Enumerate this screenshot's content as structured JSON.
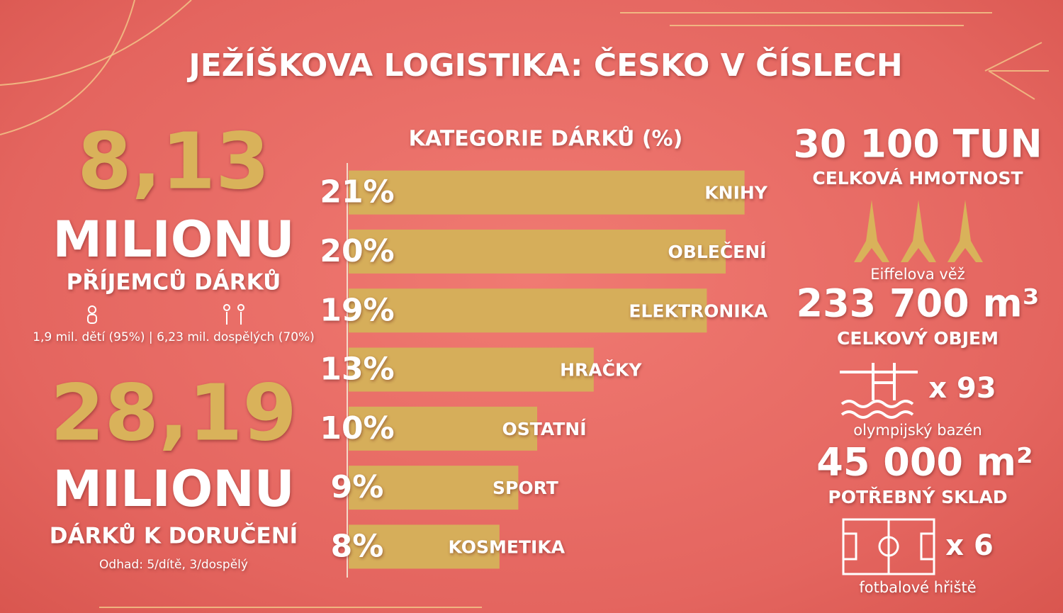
{
  "title": "JEŽÍŠKOVA LOGISTIKA: ČESKO V ČÍSLECH",
  "left": {
    "recipients": {
      "number": "8,13",
      "unit": "MILIONU",
      "label": "PŘÍJEMCŮ DÁRKŮ",
      "note": "1,9 mil. dětí (95%) | 6,23 mil. dospělých (70%)"
    },
    "gifts": {
      "number": "28,19",
      "unit": "MILIONU",
      "label": "DÁRKŮ K DORUČENÍ",
      "note": "Odhad: 5/dítě, 3/dospělý"
    }
  },
  "right": {
    "weight": {
      "value": "30 100 TUN",
      "label": "CELKOVÁ HMOTNOST",
      "icon_label": "Eiffelova věž"
    },
    "volume": {
      "value": "233 700 m³",
      "label": "CELKOVÝ OBJEM",
      "multiplier": "x 93",
      "icon_label": "olympijský bazén"
    },
    "storage": {
      "value": "45 000 m²",
      "label": "POTŘEBNÝ SKLAD",
      "multiplier": "x 6",
      "icon_label": "fotbalové hřiště"
    }
  },
  "chart_data": {
    "type": "bar",
    "orientation": "horizontal",
    "title": "KATEGORIE DÁRKŮ (%)",
    "categories": [
      "KNIHY",
      "OBLEČENÍ",
      "ELEKTRONIKA",
      "HRAČKY",
      "OSTATNÍ",
      "SPORT",
      "KOSMETIKA"
    ],
    "values": [
      21,
      20,
      19,
      13,
      10,
      9,
      8
    ],
    "value_labels": [
      "21%",
      "20%",
      "19%",
      "13%",
      "10%",
      "9%",
      "8%"
    ],
    "color": "#d6ae5a"
  }
}
